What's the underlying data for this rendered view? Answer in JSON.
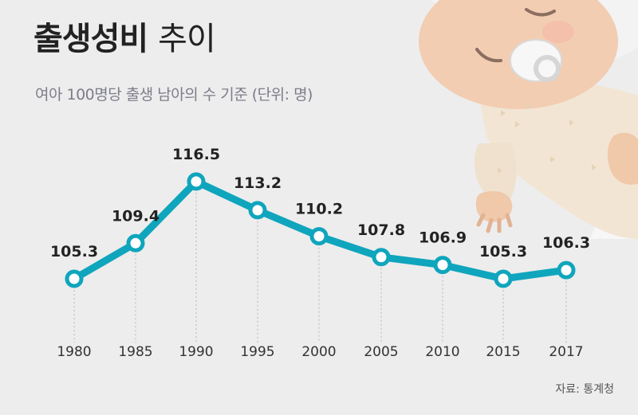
{
  "title_bold": "출생성비",
  "title_light": "추이",
  "subtitle": "여아 100명당 출생 남아의 수 기준 (단위: 명)",
  "source": "자료: 통계청",
  "colors": {
    "line": "#0fa5bd",
    "marker_fill": "#ffffff",
    "text": "#222222",
    "guide": "#b5b5b5",
    "background": "#ededed"
  },
  "chart_data": {
    "type": "line",
    "title": "출생성비 추이",
    "subtitle": "여아 100명당 출생 남아의 수 기준 (단위: 명)",
    "xlabel": "",
    "ylabel": "",
    "grid": false,
    "legend": "none",
    "categories": [
      "1980",
      "1985",
      "1990",
      "1995",
      "2000",
      "2005",
      "2010",
      "2015",
      "2017"
    ],
    "series": [
      {
        "values": [
          105.3,
          109.4,
          116.5,
          113.2,
          110.2,
          107.8,
          106.9,
          105.3,
          106.3
        ],
        "labels": [
          "105.3",
          "109.4",
          "116.5",
          "113.2",
          "110.2",
          "107.8",
          "106.9",
          "105.3",
          "106.3"
        ]
      }
    ]
  }
}
